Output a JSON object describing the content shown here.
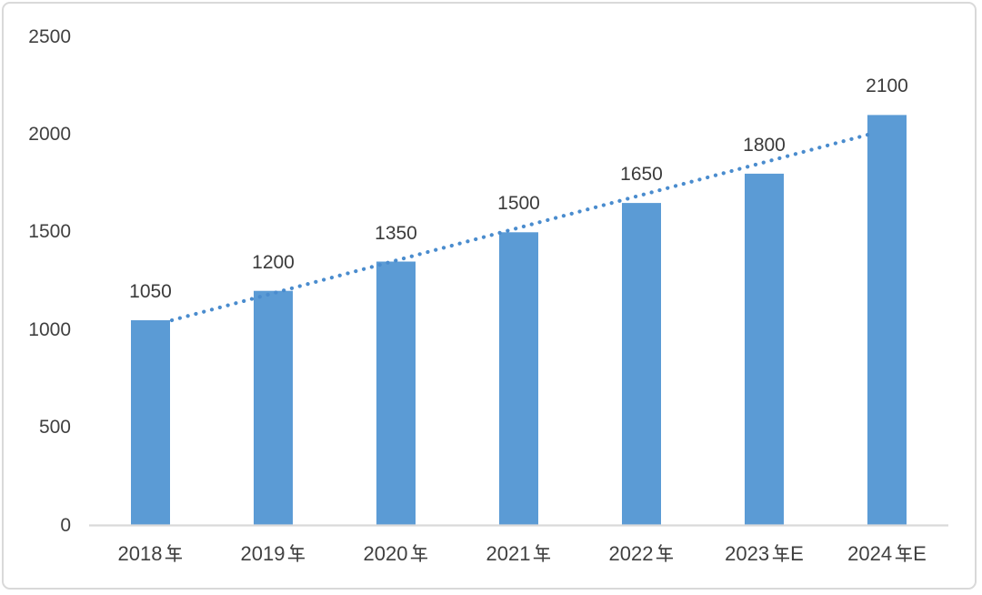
{
  "chart_data": {
    "type": "bar",
    "title": "",
    "xlabel": "",
    "ylabel": "",
    "categories": [
      "2018年",
      "2019年",
      "2020年",
      "2021年",
      "2022年",
      "2023年E",
      "2024年E"
    ],
    "values": [
      1050,
      1200,
      1350,
      1500,
      1650,
      1800,
      2100
    ],
    "data_labels": [
      "1050",
      "1200",
      "1350",
      "1500",
      "1650",
      "1800",
      "2100"
    ],
    "y_ticks": [
      "0",
      "500",
      "1000",
      "1500",
      "2000",
      "2500"
    ],
    "y_tick_values": [
      0,
      500,
      1000,
      1500,
      2000,
      2500
    ],
    "ylim": [
      0,
      2500
    ],
    "grid": false,
    "legend": false,
    "bar_color": "#5B9BD5",
    "trendline": {
      "type": "linear",
      "style": "dotted",
      "color": "#4A8CCE",
      "start_value": 1050,
      "end_value": 2000
    },
    "axis_line_color": "#D9D9D9",
    "label_color": "#404040",
    "frame_border_color": "#D9D9D9",
    "background": "#FFFFFF"
  }
}
